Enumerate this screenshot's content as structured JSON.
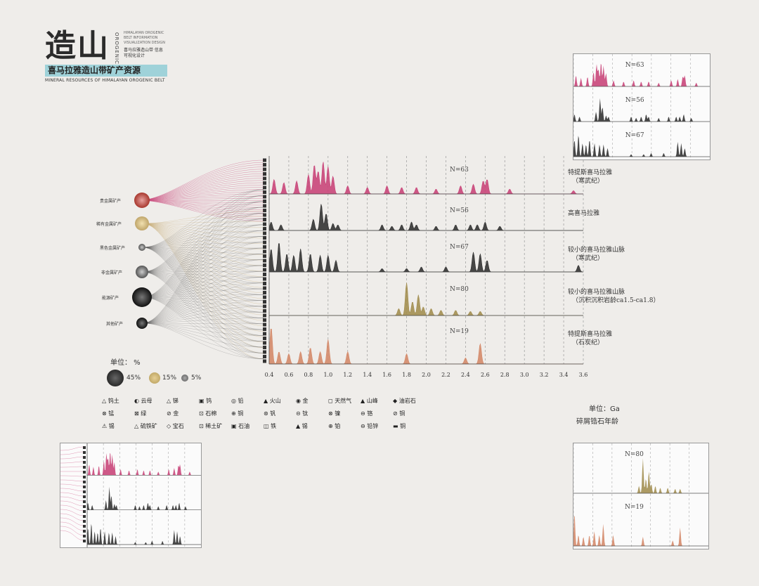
{
  "logo": {
    "big": "造山",
    "vertical": "OROGENIC",
    "en_small": "HIMALAYAN OROGENIC BELT INFORMATION VISUALIZATION DESIGN",
    "cn_small": "喜马拉雅造山带 信息可视化设计",
    "title_cn": "喜马拉雅造山带矿产资源",
    "title_en": "MINERAL RESOURCES OF HIMALAYAN OROGENIC BELT"
  },
  "size_legend": {
    "unit": "单位： %",
    "items": [
      "45%",
      "15%",
      "5%"
    ]
  },
  "category_labels": [
    "贵金属矿产",
    "稀有金属矿产",
    "黑色金属矿产",
    "非金属矿产",
    "能源矿产",
    "其他矿产"
  ],
  "row_labels": [
    {
      "line1": "特提斯喜马拉雅",
      "line2": "（寒武纪）"
    },
    {
      "line1": "高喜马拉雅",
      "line2": ""
    },
    {
      "line1": "较小的喜马拉雅山脉",
      "line2": "（寒武纪）"
    },
    {
      "line1": "较小的喜马拉雅山脉",
      "line2": "（沉积沉积岩龄ca1.5-ca1.8）"
    },
    {
      "line1": "特提斯喜马拉雅",
      "line2": "（石炭纪）"
    }
  ],
  "axis_unit": {
    "unit": "单位：Ga",
    "label": "碎屑锆石年龄"
  },
  "mineral_legend": [
    [
      "钨土",
      "云母",
      "锑",
      "钨",
      "铅",
      "火山",
      "金",
      "天然气",
      "山峰",
      "油岩石"
    ],
    [
      "锰",
      "绿",
      "金",
      "石棉",
      "铜",
      "钒",
      "钛",
      "镍",
      "铬",
      "铜"
    ],
    [
      "锡",
      "硫铁矿",
      "宝石",
      "稀土矿",
      "石油",
      "铁",
      "锡",
      "铂",
      "铅锌",
      "铜"
    ]
  ],
  "colors": {
    "pink": "#c9467a",
    "black": "#333333",
    "olive": "#a38f52",
    "orange": "#d48a6a",
    "teal": "#9fd2d9"
  },
  "chart_data": {
    "type": "area",
    "xlabel": "碎屑锆石年龄",
    "xunit": "Ga",
    "x_ticks": [
      "0.4",
      "0.6",
      "0.8",
      "1.0",
      "1.2",
      "1.4",
      "1.6",
      "1.8",
      "2.0",
      "2.2",
      "2.4",
      "2.6",
      "2.8",
      "3.0",
      "3.2",
      "3.4",
      "3.6"
    ],
    "xlim": [
      0.4,
      3.6
    ],
    "series": [
      {
        "name": "特提斯喜马拉雅（寒武纪）",
        "n_label": "N=63",
        "color": "#c9467a",
        "peaks": [
          [
            0.45,
            0.45
          ],
          [
            0.55,
            0.35
          ],
          [
            0.68,
            0.4
          ],
          [
            0.8,
            0.6
          ],
          [
            0.86,
            0.9
          ],
          [
            0.9,
            0.7
          ],
          [
            0.95,
            1.0
          ],
          [
            1.0,
            0.85
          ],
          [
            1.05,
            0.55
          ],
          [
            1.2,
            0.25
          ],
          [
            1.4,
            0.2
          ],
          [
            1.6,
            0.25
          ],
          [
            1.75,
            0.2
          ],
          [
            1.9,
            0.2
          ],
          [
            2.1,
            0.15
          ],
          [
            2.35,
            0.25
          ],
          [
            2.48,
            0.3
          ],
          [
            2.58,
            0.4
          ],
          [
            2.62,
            0.45
          ],
          [
            2.85,
            0.15
          ],
          [
            3.5,
            0.1
          ]
        ]
      },
      {
        "name": "高喜马拉雅",
        "n_label": "N=56",
        "color": "#333333",
        "peaks": [
          [
            0.42,
            0.3
          ],
          [
            0.52,
            0.2
          ],
          [
            0.85,
            0.4
          ],
          [
            0.93,
            0.95
          ],
          [
            0.98,
            0.6
          ],
          [
            1.05,
            0.25
          ],
          [
            1.1,
            0.2
          ],
          [
            1.55,
            0.2
          ],
          [
            1.65,
            0.15
          ],
          [
            1.75,
            0.2
          ],
          [
            1.85,
            0.3
          ],
          [
            1.9,
            0.2
          ],
          [
            2.1,
            0.15
          ],
          [
            2.3,
            0.2
          ],
          [
            2.45,
            0.2
          ],
          [
            2.52,
            0.2
          ],
          [
            2.6,
            0.3
          ],
          [
            2.75,
            0.15
          ]
        ]
      },
      {
        "name": "较小的喜马拉雅山脉（寒武纪）",
        "n_label": "N=67",
        "color": "#333333",
        "peaks": [
          [
            0.42,
            0.7
          ],
          [
            0.5,
            0.9
          ],
          [
            0.58,
            0.55
          ],
          [
            0.65,
            0.5
          ],
          [
            0.72,
            0.7
          ],
          [
            0.82,
            0.55
          ],
          [
            0.92,
            0.5
          ],
          [
            1.0,
            0.5
          ],
          [
            1.08,
            0.35
          ],
          [
            1.55,
            0.1
          ],
          [
            1.8,
            0.1
          ],
          [
            1.95,
            0.15
          ],
          [
            2.2,
            0.15
          ],
          [
            2.48,
            0.6
          ],
          [
            2.55,
            0.55
          ],
          [
            2.62,
            0.35
          ],
          [
            3.55,
            0.2
          ]
        ]
      },
      {
        "name": "较小的喜马拉雅山脉（沉积沉积岩龄ca1.5-ca1.8）",
        "n_label": "N=80",
        "color": "#a38f52",
        "peaks": [
          [
            1.72,
            0.2
          ],
          [
            1.8,
            0.95
          ],
          [
            1.86,
            0.4
          ],
          [
            1.92,
            0.6
          ],
          [
            1.97,
            0.25
          ],
          [
            2.05,
            0.2
          ],
          [
            2.15,
            0.15
          ],
          [
            2.3,
            0.15
          ],
          [
            2.45,
            0.12
          ],
          [
            2.55,
            0.12
          ]
        ]
      },
      {
        "name": "特提斯喜马拉雅（石炭纪）",
        "n_label": "N=19",
        "color": "#d48a6a",
        "peaks": [
          [
            0.42,
            0.9
          ],
          [
            0.5,
            0.3
          ],
          [
            0.6,
            0.25
          ],
          [
            0.72,
            0.3
          ],
          [
            0.82,
            0.4
          ],
          [
            0.92,
            0.3
          ],
          [
            1.0,
            0.6
          ],
          [
            1.2,
            0.3
          ],
          [
            1.8,
            0.25
          ],
          [
            2.4,
            0.15
          ],
          [
            2.55,
            0.5
          ]
        ]
      }
    ]
  },
  "insets": {
    "top_right": [
      "N=63",
      "N=56",
      "N=67"
    ],
    "bottom_right": [
      "N=80",
      "N=19"
    ]
  }
}
